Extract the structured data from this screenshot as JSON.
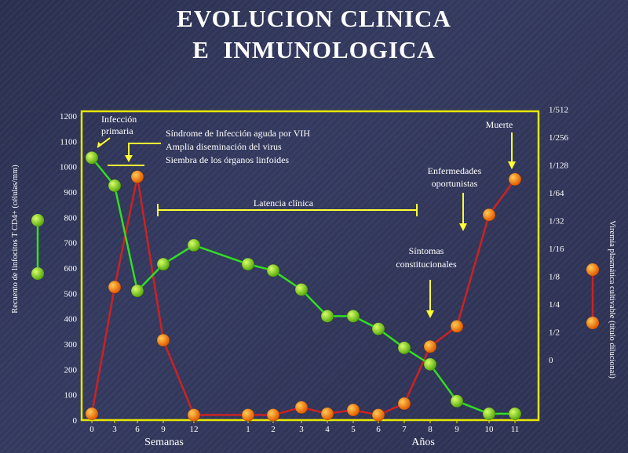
{
  "title": {
    "line1": "EVOLUCION CLINICA",
    "line2": "E  INMUNOLOGICA"
  },
  "chart_data": {
    "type": "line",
    "xlabel_weeks": "Semanas",
    "xlabel_years": "Años",
    "ylabel_left": "Recuento de linfocitos T CD4+ (células/mm)",
    "ylabel_right": "Viremia plasmática cultivable (título dilucional)",
    "ylim_left": [
      0,
      1200
    ],
    "left_ticks": [
      "0",
      "100",
      "200",
      "300",
      "400",
      "500",
      "600",
      "700",
      "800",
      "900",
      "1000",
      "1100",
      "1200"
    ],
    "right_ticks": [
      "0",
      "1/2",
      "1/4",
      "1/8",
      "1/16",
      "1/32",
      "1/64",
      "1/128",
      "1/256",
      "1/512"
    ],
    "x_ticks": [
      "0",
      "3",
      "6",
      "9",
      "12",
      "1",
      "2",
      "3",
      "4",
      "5",
      "6",
      "7",
      "8",
      "9",
      "10",
      "11"
    ],
    "colors": {
      "cd4": "#33dd22",
      "virus": "#cc2222",
      "marker_cd4": "#88dd33",
      "marker_virus": "#ff8800",
      "frame": "#e6e600",
      "annotation": "#ffff33"
    },
    "series": [
      {
        "key": "cd4",
        "x": [
          "0",
          "3",
          "6",
          "9",
          "12",
          "1",
          "2",
          "3",
          "4",
          "5",
          "6",
          "7",
          "8",
          "9",
          "10",
          "11"
        ],
        "values": [
          1035,
          925,
          510,
          615,
          690,
          615,
          590,
          515,
          410,
          410,
          360,
          285,
          220,
          75,
          25,
          25
        ]
      },
      {
        "key": "virus",
        "x": [
          "0",
          "3",
          "6",
          "9",
          "12",
          "1",
          "2",
          "3",
          "4",
          "5",
          "6",
          "7",
          "8",
          "9",
          "10",
          "11"
        ],
        "values": [
          25,
          525,
          960,
          315,
          20,
          20,
          20,
          50,
          25,
          40,
          20,
          65,
          290,
          370,
          810,
          950
        ]
      }
    ],
    "annotations": {
      "infeccion_primaria": "Infección primaria",
      "sindrome_line1": "Síndrome de Infección aguda por VIH",
      "sindrome_line2": "Amplia diseminación del  virus",
      "sindrome_line3": "Siembra de los órganos linfoides",
      "latencia": "Latencia clínica",
      "sintomas": "Síntomas constitucionales",
      "enfermedades": "Enfermedades oportunistas",
      "muerte": "Muerte"
    }
  }
}
